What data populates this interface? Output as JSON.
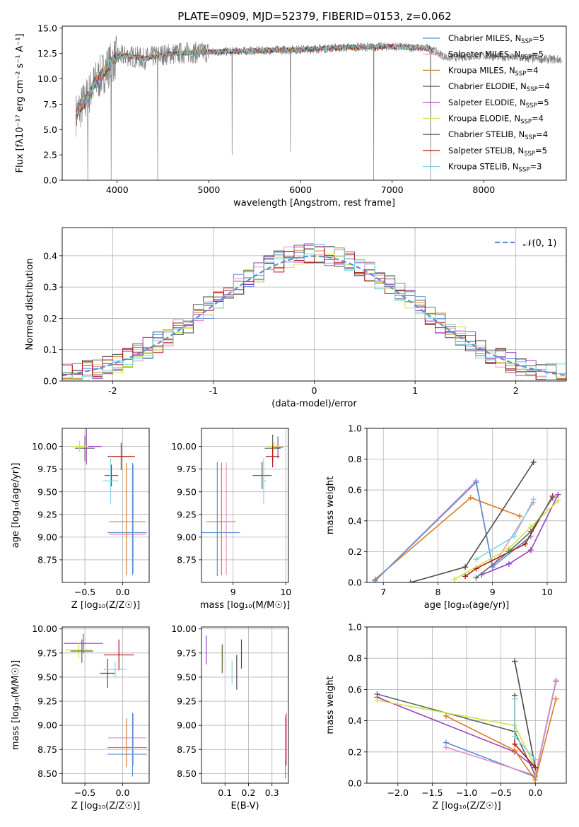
{
  "figure_title": "PLATE=0909, MJD=52379, FIBERID=0153, z=0.062",
  "colors": {
    "Chabrier MILES": "#5b8fd6",
    "Salpeter MILES": "#e58fc8",
    "Kroupa MILES": "#e07b22",
    "Chabrier ELODIE": "#5b6b5b",
    "Salpeter ELODIE": "#9b3fbf",
    "Kroupa ELODIE": "#cde24a",
    "Chabrier STELIB": "#4a4a4a",
    "Salpeter STELIB": "#b51818",
    "Kroupa STELIB": "#7fd6e0",
    "data": "#808080",
    "gauss": "#5b8fd6"
  },
  "chart_data": [
    {
      "type": "line",
      "title": "PLATE=0909, MJD=52379, FIBERID=0153, z=0.062",
      "xlabel": "wavelength [Angstrom, rest frame]",
      "ylabel": "Flux [fλ10⁻¹⁷ erg cm⁻² s⁻¹ A⁻¹]",
      "xlim": [
        3400,
        8900
      ],
      "ylim": [
        0,
        15.2
      ],
      "xticks": [
        4000,
        5000,
        6000,
        7000,
        8000
      ],
      "yticks": [
        0.0,
        2.5,
        5.0,
        7.5,
        10.0,
        12.5,
        15.0
      ],
      "ytick_labels": [
        "0.0",
        "2.5",
        "5.0",
        "7.5",
        "10.0",
        "12.5",
        "15.0"
      ],
      "legend_position": "top-right",
      "legend": [
        {
          "label": "Chabrier MILES, N",
          "sub": "SSP",
          "tail": "=5"
        },
        {
          "label": "Salpeter MILES, N",
          "sub": "SSP",
          "tail": "=5"
        },
        {
          "label": "Kroupa MILES, N",
          "sub": "SSP",
          "tail": "=4"
        },
        {
          "label": "Chabrier ELODIE, N",
          "sub": "SSP",
          "tail": "=4"
        },
        {
          "label": "Salpeter ELODIE, N",
          "sub": "SSP",
          "tail": "=5"
        },
        {
          "label": "Kroupa ELODIE, N",
          "sub": "SSP",
          "tail": "=4"
        },
        {
          "label": "Chabrier STELIB, N",
          "sub": "SSP",
          "tail": "=4"
        },
        {
          "label": "Salpeter STELIB, N",
          "sub": "SSP",
          "tail": "=5"
        },
        {
          "label": "Kroupa STELIB, N",
          "sub": "SSP",
          "tail": "=3"
        }
      ],
      "spectrum_wavelength_range": [
        3550,
        8850
      ],
      "continuum_knots": {
        "x": [
          3550,
          3650,
          3750,
          3900,
          4000,
          4100,
          4300,
          4500,
          4800,
          5200,
          5600,
          6000,
          6500,
          7000,
          7400,
          7600,
          8000,
          8500,
          8850
        ],
        "y": [
          6.5,
          7.8,
          9.5,
          11.2,
          12.2,
          12.3,
          12.0,
          12.4,
          12.6,
          12.7,
          12.8,
          12.9,
          13.1,
          13.2,
          13.0,
          12.1,
          12.3,
          12.0,
          11.9
        ]
      },
      "absorption_spikes": [
        {
          "x": 3680,
          "y": 0.0
        },
        {
          "x": 3935,
          "y": 0.0
        },
        {
          "x": 4440,
          "y": 0.0
        },
        {
          "x": 5255,
          "y": 2.5
        },
        {
          "x": 5890,
          "y": 2.8
        },
        {
          "x": 6800,
          "y": 0.0
        },
        {
          "x": 7420,
          "y": 0.0
        }
      ]
    },
    {
      "type": "histogram",
      "xlabel": "(data-model)/error",
      "ylabel": "Normed distribution",
      "xlim": [
        -2.5,
        2.5
      ],
      "ylim": [
        0,
        0.49
      ],
      "xticks": [
        -2,
        -1,
        0,
        1,
        2
      ],
      "yticks": [
        0.0,
        0.1,
        0.2,
        0.3,
        0.4
      ],
      "ytick_labels": [
        "0.0",
        "0.1",
        "0.2",
        "0.3",
        "0.4"
      ],
      "grid": true,
      "legend_position": "top-right",
      "legend": [
        {
          "label": "𝒩(0, 1)",
          "style": "dashed"
        }
      ],
      "bin_edges_start": -2.5,
      "bin_width": 0.1,
      "reference_curve": {
        "type": "gaussian",
        "mean": 0,
        "sigma": 1,
        "style": "dashed"
      }
    },
    {
      "type": "errorbar",
      "xlabel": "Z [log₁₀(Z/Z☉)]",
      "ylabel": "age  [log₁₀(age/yr)]",
      "xlim": [
        -0.8,
        0.35
      ],
      "ylim": [
        8.5,
        10.2
      ],
      "xticks": [
        -0.5,
        0.0
      ],
      "xtick_labels": [
        "−0.5",
        "0.0"
      ],
      "yticks": [
        8.75,
        9.0,
        9.25,
        9.5,
        9.75,
        10.0
      ],
      "ytick_labels": [
        "8.75",
        "9.00",
        "9.25",
        "9.50",
        "9.75",
        "10.00"
      ],
      "grid": true,
      "points": [
        {
          "model": "Chabrier MILES",
          "x": 0.06,
          "y": 9.05,
          "xerr": 0.26,
          "yerr": 0.0
        },
        {
          "model": "Salpeter MILES",
          "x": 0.06,
          "y": 9.03,
          "xerr": 0.24,
          "yerr": 0.0
        },
        {
          "model": "Kroupa MILES",
          "x": 0.06,
          "y": 9.17,
          "xerr": 0.24,
          "yerr": 0.0
        },
        {
          "model": "Kroupa MILES",
          "x": 0.05,
          "y": 9.2,
          "xerr": 0.0,
          "yerr": 0.62
        },
        {
          "model": "Salpeter MILES",
          "x": 0.14,
          "y": 9.2,
          "xerr": 0.0,
          "yerr": 0.6
        },
        {
          "model": "Chabrier MILES",
          "x": 0.13,
          "y": 9.2,
          "xerr": 0.0,
          "yerr": 0.62
        },
        {
          "model": "Chabrier ELODIE",
          "x": -0.5,
          "y": 9.98,
          "xerr": 0.13,
          "yerr": 0.14
        },
        {
          "model": "Salpeter ELODIE",
          "x": -0.48,
          "y": 10.0,
          "xerr": 0.2,
          "yerr": 0.2
        },
        {
          "model": "Kroupa ELODIE",
          "x": -0.57,
          "y": 10.0,
          "xerr": 0.11,
          "yerr": 0.06
        },
        {
          "model": "Chabrier STELIB",
          "x": -0.15,
          "y": 9.68,
          "xerr": 0.09,
          "yerr": 0.12
        },
        {
          "model": "Salpeter STELIB",
          "x": -0.02,
          "y": 9.89,
          "xerr": 0.18,
          "yerr": 0.15
        },
        {
          "model": "Kroupa STELIB",
          "x": -0.16,
          "y": 9.62,
          "xerr": 0.1,
          "yerr": 0.25
        }
      ]
    },
    {
      "type": "errorbar",
      "xlabel": "mass [log₁₀(M/M☉)]",
      "ylabel": "",
      "xlim": [
        8.4,
        10.05
      ],
      "ylim": [
        8.5,
        10.2
      ],
      "xticks": [
        9,
        10
      ],
      "xtick_labels": [
        "9",
        "10"
      ],
      "yticks": [
        8.75,
        9.0,
        9.25,
        9.5,
        9.75,
        10.0
      ],
      "ytick_labels": [
        "8.75",
        "9.00",
        "9.25",
        "9.50",
        "9.75",
        "10.00"
      ],
      "grid": true,
      "points": [
        {
          "model": "Chabrier MILES",
          "x": 8.75,
          "y": 9.05,
          "xerr": 0.38,
          "yerr": 0.0
        },
        {
          "model": "Chabrier MILES",
          "x": 8.7,
          "y": 9.2,
          "xerr": 0.0,
          "yerr": 0.63
        },
        {
          "model": "Kroupa MILES",
          "x": 8.77,
          "y": 9.17,
          "xerr": 0.28,
          "yerr": 0.0
        },
        {
          "model": "Kroupa MILES",
          "x": 8.78,
          "y": 9.2,
          "xerr": 0.0,
          "yerr": 0.62
        },
        {
          "model": "Salpeter MILES",
          "x": 8.87,
          "y": 9.2,
          "xerr": 0.0,
          "yerr": 0.62
        },
        {
          "model": "Chabrier ELODIE",
          "x": 9.75,
          "y": 9.98,
          "xerr": 0.15,
          "yerr": 0.15
        },
        {
          "model": "Salpeter ELODIE",
          "x": 9.85,
          "y": 9.99,
          "xerr": 0.1,
          "yerr": 0.12
        },
        {
          "model": "Kroupa ELODIE",
          "x": 9.78,
          "y": 10.0,
          "xerr": 0.12,
          "yerr": 0.05
        },
        {
          "model": "Chabrier STELIB",
          "x": 9.55,
          "y": 9.68,
          "xerr": 0.18,
          "yerr": 0.15
        },
        {
          "model": "Salpeter STELIB",
          "x": 9.75,
          "y": 9.89,
          "xerr": 0.13,
          "yerr": 0.12
        },
        {
          "model": "Kroupa STELIB",
          "x": 9.58,
          "y": 9.62,
          "xerr": 0.05,
          "yerr": 0.25
        }
      ]
    },
    {
      "type": "line",
      "xlabel": "age  [log₁₀(age/yr)]",
      "ylabel": "mass weight",
      "xlim": [
        6.7,
        10.35
      ],
      "ylim": [
        0.0,
        1.0
      ],
      "xticks": [
        7,
        8,
        9,
        10
      ],
      "xtick_labels": [
        "7",
        "8",
        "9",
        "10"
      ],
      "yticks": [
        0.0,
        0.2,
        0.4,
        0.6,
        0.8,
        1.0
      ],
      "ytick_labels": [
        "0.0",
        "0.2",
        "0.4",
        "0.6",
        "0.8",
        "1.0"
      ],
      "grid": true,
      "series": [
        {
          "model": "Kroupa MILES",
          "x": [
            6.85,
            8.6,
            9.5
          ],
          "y": [
            0.02,
            0.55,
            0.43
          ]
        },
        {
          "model": "Salpeter MILES",
          "x": [
            6.85,
            8.7,
            9.0,
            9.75
          ],
          "y": [
            0.01,
            0.66,
            0.1,
            0.52
          ]
        },
        {
          "model": "Chabrier MILES",
          "x": [
            6.85,
            8.7,
            9.0,
            9.7
          ],
          "y": [
            0.01,
            0.65,
            0.1,
            0.3
          ]
        },
        {
          "model": "Chabrier STELIB",
          "x": [
            7.5,
            8.5,
            9.75
          ],
          "y": [
            0.0,
            0.1,
            0.78
          ]
        },
        {
          "model": "Kroupa STELIB",
          "x": [
            8.7,
            9.4,
            9.75
          ],
          "y": [
            0.15,
            0.3,
            0.54
          ]
        },
        {
          "model": "Salpeter STELIB",
          "x": [
            8.5,
            8.7,
            9.6,
            10.1
          ],
          "y": [
            0.04,
            0.09,
            0.25,
            0.56
          ]
        },
        {
          "model": "Salpeter ELODIE",
          "x": [
            8.8,
            9.3,
            9.7,
            10.2
          ],
          "y": [
            0.05,
            0.12,
            0.21,
            0.57
          ]
        },
        {
          "model": "Kroupa ELODIE",
          "x": [
            8.3,
            9.3,
            9.7,
            10.2
          ],
          "y": [
            0.02,
            0.22,
            0.36,
            0.53
          ]
        },
        {
          "model": "Chabrier ELODIE",
          "x": [
            8.7,
            9.3,
            9.7,
            10.1
          ],
          "y": [
            0.03,
            0.2,
            0.33,
            0.55
          ]
        }
      ]
    },
    {
      "type": "errorbar",
      "xlabel": "Z [log₁₀(Z/Z☉)]",
      "ylabel": "mass [log₁₀(M/M☉)]",
      "xlim": [
        -0.8,
        0.35
      ],
      "ylim": [
        8.4,
        10.02
      ],
      "xticks": [
        -0.5,
        0.0
      ],
      "xtick_labels": [
        "−0.5",
        "0.0"
      ],
      "yticks": [
        8.5,
        8.75,
        9.0,
        9.25,
        9.5,
        9.75,
        10.0
      ],
      "ytick_labels": [
        "8.50",
        "8.75",
        "9.00",
        "9.25",
        "9.50",
        "9.75",
        "10.00"
      ],
      "grid": true,
      "points": [
        {
          "model": "Chabrier MILES",
          "x": 0.06,
          "y": 8.7,
          "xerr": 0.26,
          "yerr": 0.0
        },
        {
          "model": "Kroupa MILES",
          "x": 0.06,
          "y": 8.77,
          "xerr": 0.26,
          "yerr": 0.0
        },
        {
          "model": "Salpeter MILES",
          "x": 0.06,
          "y": 8.87,
          "xerr": 0.25,
          "yerr": 0.0
        },
        {
          "model": "Kroupa MILES",
          "x": 0.05,
          "y": 8.82,
          "xerr": 0.0,
          "yerr": 0.25
        },
        {
          "model": "Chabrier MILES",
          "x": 0.13,
          "y": 8.8,
          "xerr": 0.0,
          "yerr": 0.33
        },
        {
          "model": "Salpeter MILES",
          "x": 0.14,
          "y": 8.85,
          "xerr": 0.0,
          "yerr": 0.27
        },
        {
          "model": "Salpeter ELODIE",
          "x": -0.52,
          "y": 9.85,
          "xerr": 0.26,
          "yerr": 0.1
        },
        {
          "model": "Kroupa ELODIE",
          "x": -0.58,
          "y": 9.78,
          "xerr": 0.17,
          "yerr": 0.08
        },
        {
          "model": "Chabrier ELODIE",
          "x": -0.54,
          "y": 9.77,
          "xerr": 0.15,
          "yerr": 0.12
        },
        {
          "model": "Chabrier STELIB",
          "x": -0.2,
          "y": 9.54,
          "xerr": 0.1,
          "yerr": 0.15
        },
        {
          "model": "Salpeter STELIB",
          "x": -0.05,
          "y": 9.73,
          "xerr": 0.2,
          "yerr": 0.16
        },
        {
          "model": "Kroupa STELIB",
          "x": -0.1,
          "y": 9.58,
          "xerr": 0.15,
          "yerr": 0.08
        }
      ]
    },
    {
      "type": "errorbar",
      "xlabel": "E(B-V)",
      "ylabel": "",
      "xlim": [
        0.0,
        0.37
      ],
      "ylim": [
        8.4,
        10.02
      ],
      "xticks": [
        0.1,
        0.2,
        0.3
      ],
      "xtick_labels": [
        "0.1",
        "0.2",
        "0.3"
      ],
      "yticks": [
        8.5,
        8.75,
        9.0,
        9.25,
        9.5,
        9.75,
        10.0
      ],
      "ytick_labels": [
        "8.50",
        "8.75",
        "9.00",
        "9.25",
        "9.50",
        "9.75",
        "10.00"
      ],
      "grid": true,
      "points": [
        {
          "model": "Salpeter ELODIE",
          "x": 0.02,
          "y": 9.78,
          "xerr": 0.0,
          "yerr": 0.15
        },
        {
          "model": "Kroupa ELODIE",
          "x": 0.09,
          "y": 9.7,
          "xerr": 0.0,
          "yerr": 0.14
        },
        {
          "model": "Chabrier ELODIE",
          "x": 0.088,
          "y": 9.69,
          "xerr": 0.0,
          "yerr": 0.15
        },
        {
          "model": "Kroupa STELIB",
          "x": 0.13,
          "y": 9.55,
          "xerr": 0.0,
          "yerr": 0.12
        },
        {
          "model": "Chabrier STELIB",
          "x": 0.15,
          "y": 9.55,
          "xerr": 0.0,
          "yerr": 0.18
        },
        {
          "model": "Salpeter STELIB",
          "x": 0.17,
          "y": 9.74,
          "xerr": 0.0,
          "yerr": 0.15
        },
        {
          "model": "Chabrier MILES",
          "x": 0.357,
          "y": 8.78,
          "xerr": 0.0,
          "yerr": 0.33
        },
        {
          "model": "Kroupa MILES",
          "x": 0.36,
          "y": 8.83,
          "xerr": 0.0,
          "yerr": 0.25
        },
        {
          "model": "Salpeter MILES",
          "x": 0.362,
          "y": 8.86,
          "xerr": 0.0,
          "yerr": 0.27
        }
      ]
    },
    {
      "type": "line",
      "xlabel": "Z [log₁₀(Z/Z☉)]",
      "ylabel": "mass weight",
      "xlim": [
        -2.45,
        0.45
      ],
      "ylim": [
        0.0,
        1.0
      ],
      "xticks": [
        -2.0,
        -1.5,
        -1.0,
        -0.5,
        0.0
      ],
      "xtick_labels": [
        "−2.0",
        "−1.5",
        "−1.0",
        "−0.5",
        "0.0"
      ],
      "yticks": [
        0.0,
        0.2,
        0.4,
        0.6,
        0.8,
        1.0
      ],
      "ytick_labels": [
        "0.0",
        "0.2",
        "0.4",
        "0.6",
        "0.8",
        "1.0"
      ],
      "grid": true,
      "series": [
        {
          "model": "Chabrier ELODIE",
          "x": [
            -2.3,
            -0.3,
            0.0
          ],
          "y": [
            0.57,
            0.33,
            0.05
          ]
        },
        {
          "model": "Salpeter ELODIE",
          "x": [
            -2.3,
            -0.3,
            0.0
          ],
          "y": [
            0.55,
            0.2,
            0.1
          ]
        },
        {
          "model": "Kroupa ELODIE",
          "x": [
            -2.3,
            -0.3,
            0.0
          ],
          "y": [
            0.53,
            0.37,
            0.1
          ]
        },
        {
          "model": "Chabrier MILES",
          "x": [
            -1.3,
            0.0,
            0.3
          ],
          "y": [
            0.26,
            0.04,
            0.65
          ]
        },
        {
          "model": "Salpeter MILES",
          "x": [
            -1.3,
            0.0,
            0.3
          ],
          "y": [
            0.23,
            0.05,
            0.66
          ]
        },
        {
          "model": "Kroupa MILES",
          "x": [
            -1.3,
            -0.3,
            0.0,
            0.3
          ],
          "y": [
            0.43,
            0.21,
            0.02,
            0.54
          ]
        },
        {
          "model": "Chabrier STELIB",
          "x": [
            -0.3,
            0.0
          ],
          "y": [
            0.78,
            0.1
          ]
        },
        {
          "model": "Salpeter STELIB",
          "x": [
            -0.3,
            -0.3,
            0.0
          ],
          "y": [
            0.56,
            0.25,
            0.1
          ]
        },
        {
          "model": "Kroupa STELIB",
          "x": [
            -0.3,
            -0.3,
            0.0
          ],
          "y": [
            0.54,
            0.3,
            0.15
          ]
        }
      ]
    }
  ]
}
